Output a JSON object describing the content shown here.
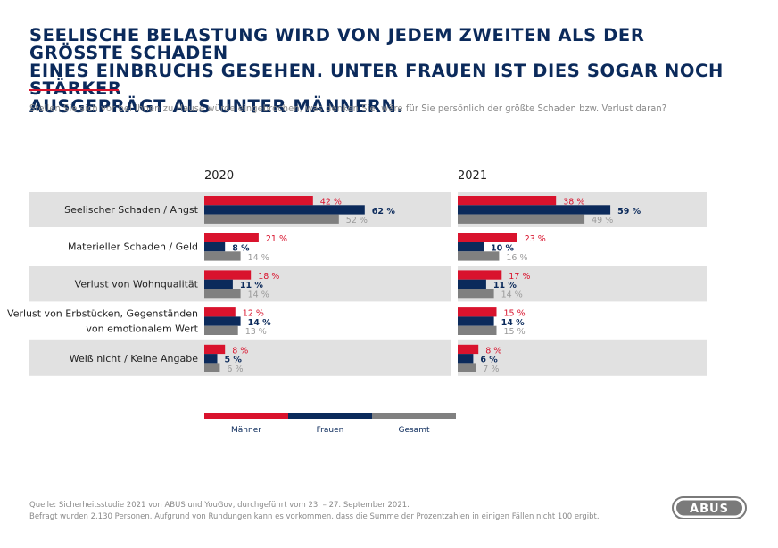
{
  "title": "SEELISCHE BELASTUNG WIRD VON JEDEM ZWEITEN ALS DER GRÖSSTE SCHADEN EINES EINBRUCHS GESEHEN. UNTER FRAUEN IST DIES SOGAR NOCH STÄRKER AUSGEPRÄGT ALS UNTER MÄNNERN.",
  "title_lines": [
    "SEELISCHE BELASTUNG WIRD VON JEDEM ZWEITEN ALS DER GRÖSSTE SCHADEN",
    "EINES EINBRUCHS GESEHEN. UNTER FRAUEN IST DIES SOGAR NOCH STÄRKER",
    "AUSGEPRÄGT ALS UNTER MÄNNERN."
  ],
  "subtitle": "Stellen Sie sich vor bei Ihnen zu Hause würde eingebrochen, was denken Sie, wäre für Sie persönlich der größte Schaden bzw. Verlust daran?",
  "colors": {
    "maenner": "#d9132d",
    "frauen": "#0b2a5b",
    "gesamt": "#808080",
    "band": "#e1e1e1"
  },
  "footer": {
    "line1": "Quelle: Sicherheitsstudie 2021 von ABUS und YouGov, durchgeführt vom 23. – 27. September 2021.",
    "line2": "Befragt wurden 2.130 Personen. Aufgrund von Rundungen kann es vorkommen, dass die Summe der Prozentzahlen in einigen Fällen nicht 100 ergibt.",
    "logo": "ABUS"
  },
  "chart_data": {
    "type": "bar",
    "orientation": "horizontal",
    "unit": "%",
    "categories": [
      "Seelischer Schaden/Angst",
      "Materieller Schaden/Geld",
      "Verlust von Wohnqualität",
      "Verlust von Erbstücken, Gegenständen von emotionalem Wert",
      "Weiß nicht/Keine Angabe"
    ],
    "category_lines": [
      [
        "Seelischer Schaden / Angst"
      ],
      [
        "Materieller Schaden / Geld"
      ],
      [
        "Verlust von Wohnqualität"
      ],
      [
        "Verlust von Erbstücken, Gegenständen",
        "von emotionalem Wert"
      ],
      [
        "Weiß nicht / Keine Angabe"
      ]
    ],
    "panels": [
      {
        "year": "2020",
        "series": [
          {
            "name": "Männer",
            "values": [
              42,
              21,
              18,
              12,
              8
            ]
          },
          {
            "name": "Frauen",
            "values": [
              62,
              8,
              11,
              14,
              5
            ]
          },
          {
            "name": "Gesamt",
            "values": [
              52,
              14,
              14,
              13,
              6
            ]
          }
        ]
      },
      {
        "year": "2021",
        "series": [
          {
            "name": "Männer",
            "values": [
              38,
              23,
              17,
              15,
              8
            ]
          },
          {
            "name": "Frauen",
            "values": [
              59,
              10,
              11,
              14,
              6
            ]
          },
          {
            "name": "Gesamt",
            "values": [
              49,
              16,
              14,
              15,
              7
            ]
          }
        ]
      }
    ],
    "legend": [
      "Männer",
      "Frauen",
      "Gesamt"
    ],
    "legend_position": "bottom",
    "grid": false
  }
}
